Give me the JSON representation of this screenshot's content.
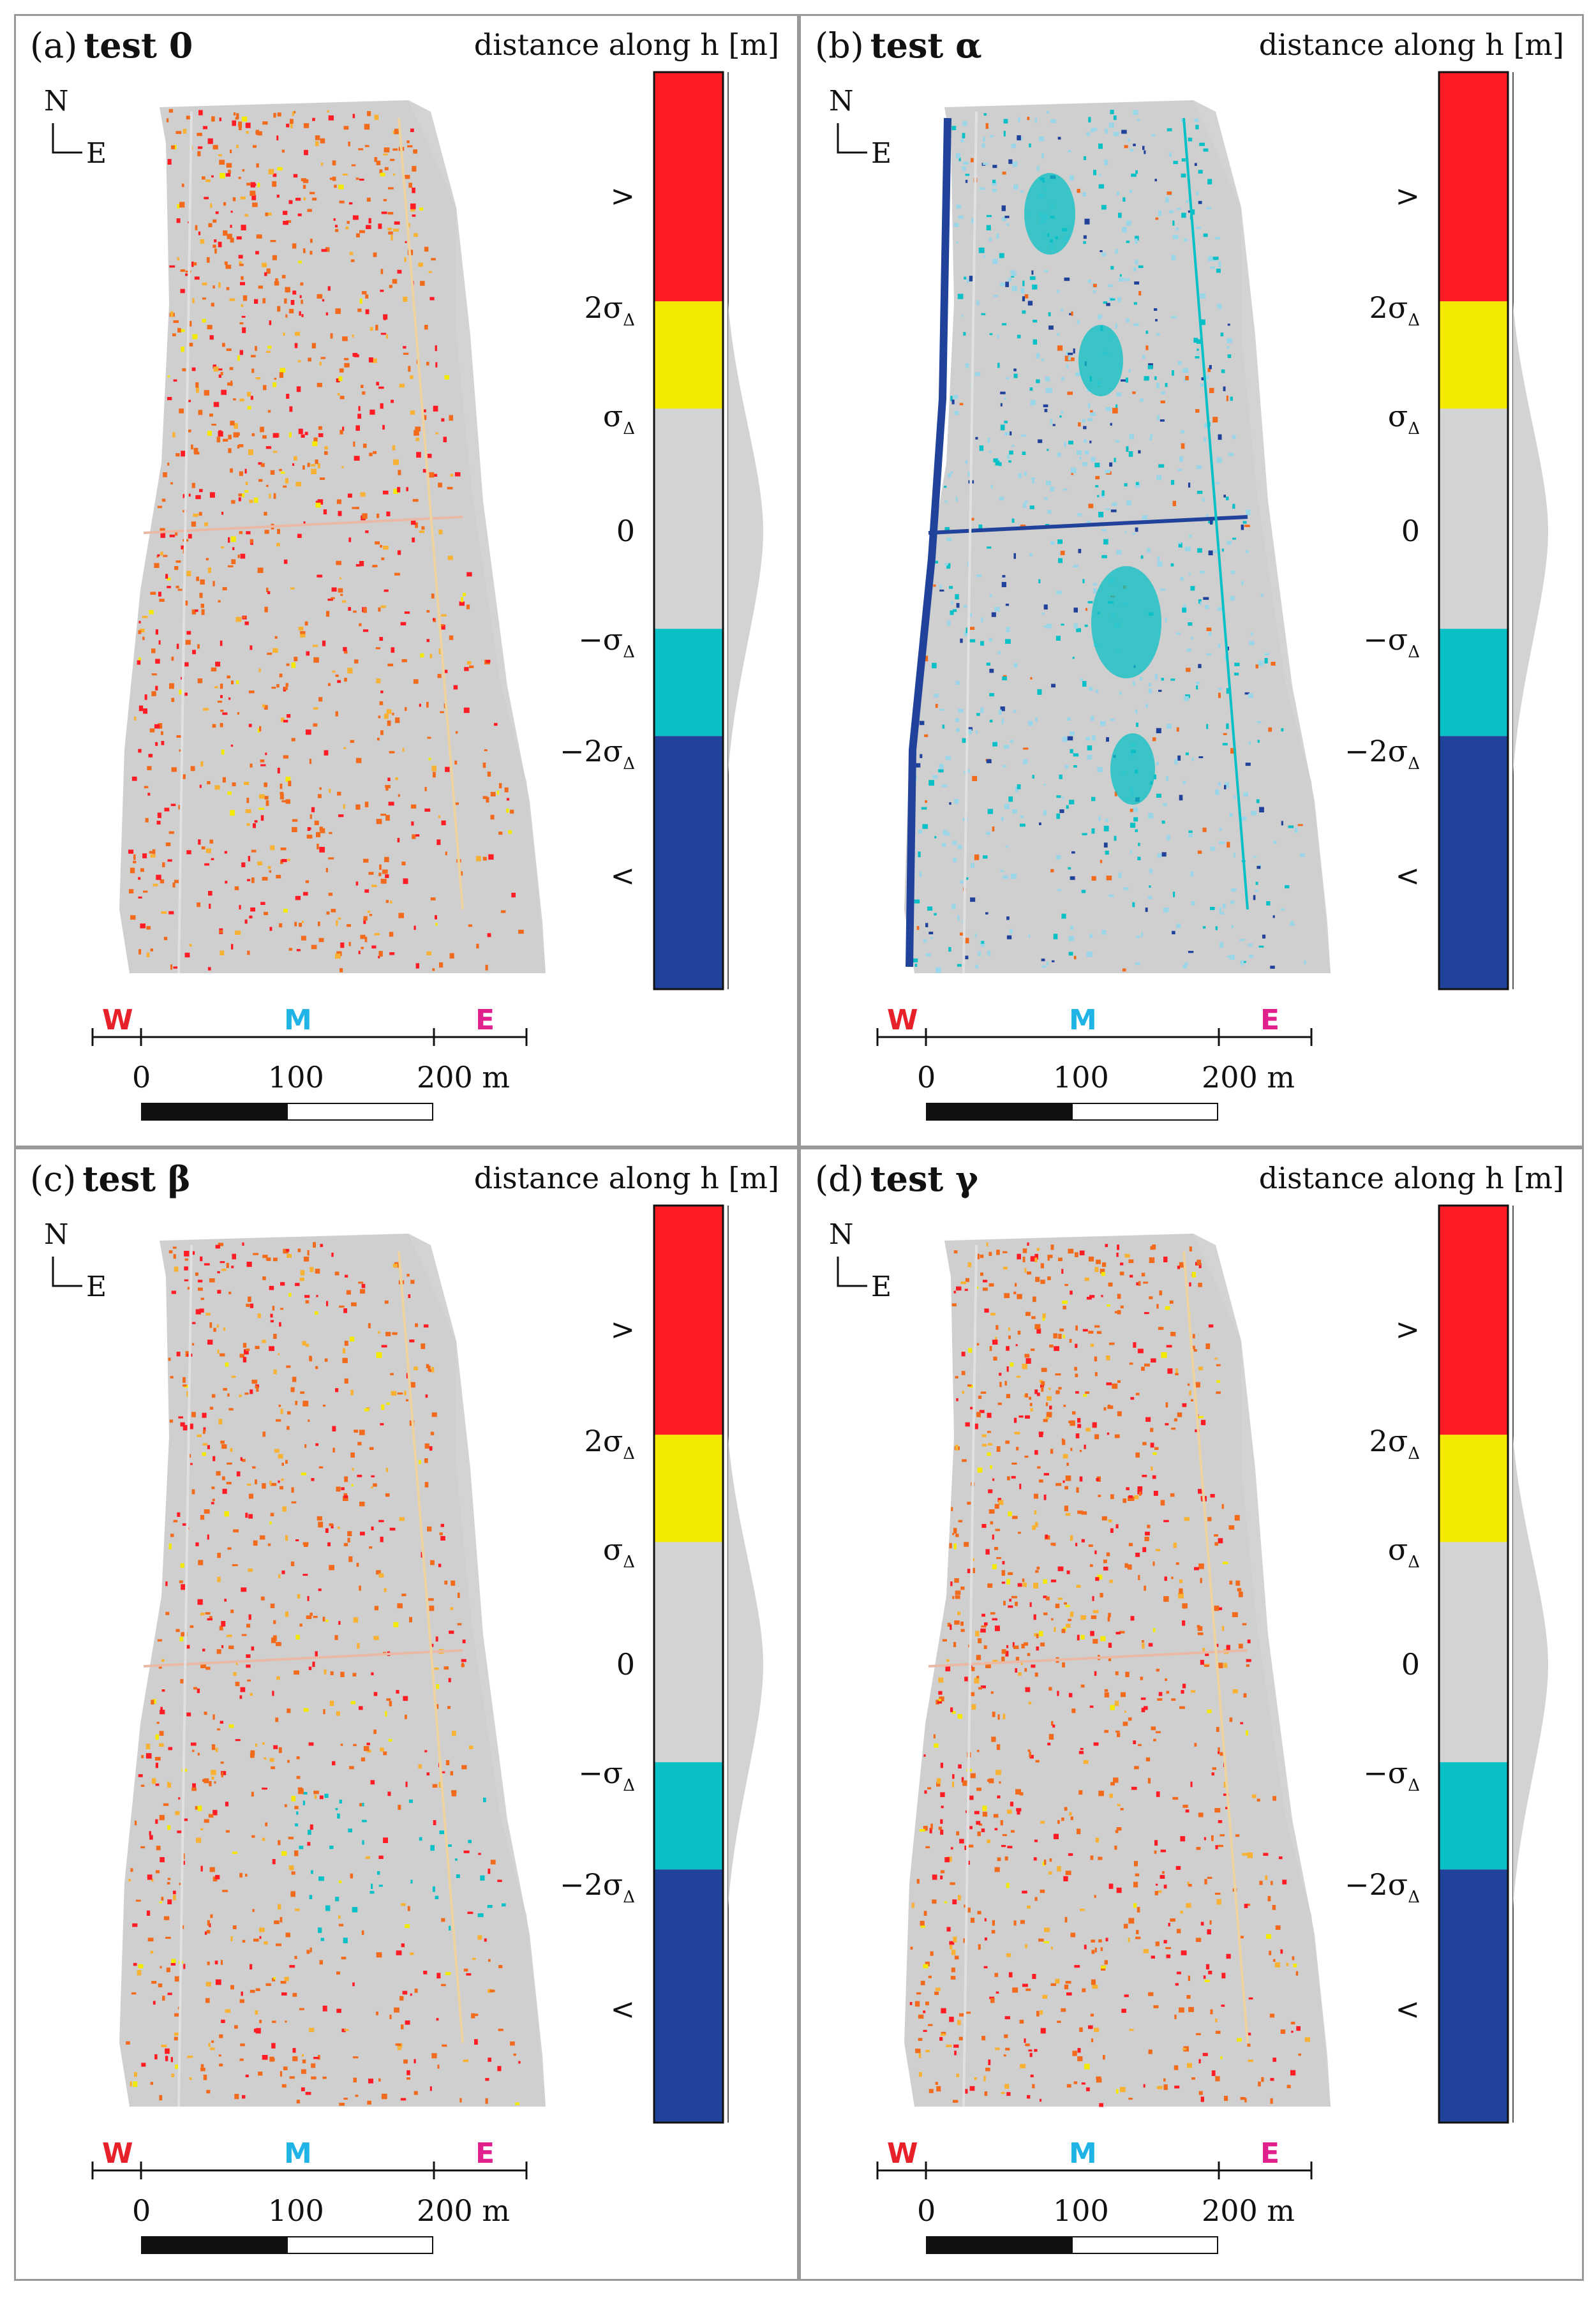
{
  "panels": [
    {
      "label": "(a)",
      "title": "test 0",
      "variant": "warm"
    },
    {
      "label": "(b)",
      "title": "test α",
      "variant": "cool"
    },
    {
      "label": "(c)",
      "title": "test β",
      "variant": "warm"
    },
    {
      "label": "(d)",
      "title": "test γ",
      "variant": "warm"
    }
  ],
  "colorbar": {
    "title": "distance along h [m]",
    "ticks": [
      {
        "text": ">",
        "sub": ""
      },
      {
        "text": "2σ",
        "sub": "Δ"
      },
      {
        "text": "σ",
        "sub": "Δ"
      },
      {
        "text": "0",
        "sub": ""
      },
      {
        "text": "−σ",
        "sub": "Δ"
      },
      {
        "text": "−2σ",
        "sub": "Δ"
      },
      {
        "text": "<",
        "sub": ""
      }
    ],
    "bands": [
      {
        "range": "> 2σΔ",
        "color": "#ff1c24"
      },
      {
        "range": "σΔ to 2σΔ",
        "color": "#f4ea00"
      },
      {
        "range": "−σΔ to σΔ",
        "color": "#d3d3d3"
      },
      {
        "range": "−2σΔ to −σΔ",
        "color": "#08c0c6"
      },
      {
        "range": "< −2σΔ",
        "color": "#21429a"
      }
    ]
  },
  "compass": {
    "north": "N",
    "east": "E"
  },
  "zones": [
    {
      "text": "W",
      "color": "#e8202a"
    },
    {
      "text": "M",
      "color": "#20b4e6"
    },
    {
      "text": "E",
      "color": "#e0208c"
    }
  ],
  "scalebar": {
    "labels": [
      "0",
      "100",
      "200 m"
    ]
  },
  "colors": {
    "red": "#ff1c24",
    "orange": "#f26a1b",
    "yellow": "#f4ea00",
    "grey": "#d3d3d3",
    "cyan": "#08c0c6",
    "blue": "#21429a",
    "lightblue": "#9ad6e8",
    "border": "#999999"
  }
}
